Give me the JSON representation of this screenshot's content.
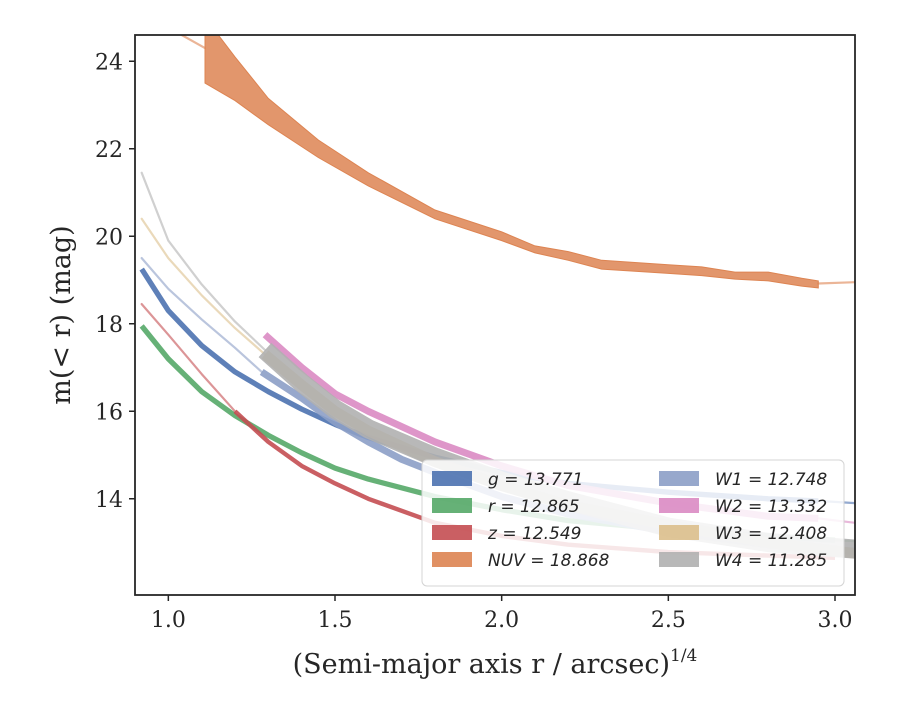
{
  "chart_data": {
    "type": "line",
    "xlabel": "(Semi-major axis r / arcsec)",
    "xlabel_exponent": "1/4",
    "ylabel": "m(< r) (mag)",
    "xlim": [
      0.9,
      3.06
    ],
    "ylim": [
      24.6,
      11.8
    ],
    "y_inverted": true,
    "grid": false,
    "legend_position": "lower-right",
    "legend_columns": 2,
    "x_ticks": [
      1.0,
      1.5,
      2.0,
      2.5,
      3.0
    ],
    "x_tick_labels": [
      "1.0",
      "1.5",
      "2.0",
      "2.5",
      "3.0"
    ],
    "y_ticks": [
      14,
      16,
      18,
      20,
      22,
      24
    ],
    "y_tick_labels": [
      "14",
      "16",
      "18",
      "20",
      "22",
      "24"
    ],
    "series": [
      {
        "name": "g",
        "legend": "g = 13.771",
        "color": "#4c72b0",
        "band_width": 0.06,
        "x": [
          0.92,
          1.0,
          1.1,
          1.2,
          1.3,
          1.4,
          1.5,
          1.6,
          1.8,
          2.0,
          2.2,
          2.5,
          2.8,
          2.95
        ],
        "y": [
          19.25,
          18.3,
          17.5,
          16.9,
          16.45,
          16.05,
          15.7,
          15.4,
          14.95,
          14.6,
          14.35,
          14.15,
          14.0,
          13.95
        ],
        "ext_x": [
          2.95,
          3.06
        ],
        "ext_y": [
          13.95,
          13.9
        ]
      },
      {
        "name": "r",
        "legend": "r = 12.865",
        "color": "#55a868",
        "band_width": 0.06,
        "x": [
          0.92,
          1.0,
          1.1,
          1.2,
          1.3,
          1.4,
          1.5,
          1.6,
          1.8,
          2.0,
          2.2,
          2.5,
          2.8,
          3.0
        ],
        "y": [
          17.95,
          17.2,
          16.45,
          15.9,
          15.45,
          15.05,
          14.7,
          14.45,
          14.05,
          13.75,
          13.5,
          13.3,
          13.15,
          13.05
        ],
        "ext_x": [
          3.0,
          3.06
        ],
        "ext_y": [
          13.05,
          13.03
        ]
      },
      {
        "name": "z",
        "legend": "z = 12.549",
        "color": "#c44e52",
        "band_width": 0.05,
        "x": [
          1.2,
          1.3,
          1.4,
          1.5,
          1.6,
          1.8,
          2.0,
          2.2,
          2.5,
          2.8,
          3.0
        ],
        "y": [
          16.0,
          15.3,
          14.75,
          14.35,
          14.0,
          13.45,
          13.15,
          12.95,
          12.78,
          12.7,
          12.65
        ],
        "ext_x": [
          0.92,
          1.0,
          1.1,
          1.2
        ],
        "ext_y": [
          18.45,
          17.75,
          16.85,
          16.0
        ]
      },
      {
        "name": "NUV",
        "legend": "NUV = 18.868",
        "color": "#dd8452",
        "band_width": 0.45,
        "x": [
          1.11,
          1.2,
          1.3,
          1.45,
          1.6,
          1.8,
          2.0,
          2.1,
          2.2,
          2.3,
          2.4,
          2.5,
          2.6,
          2.7,
          2.8,
          2.9,
          2.95
        ],
        "y": [
          24.3,
          23.6,
          22.85,
          22.0,
          21.3,
          20.5,
          20.0,
          19.7,
          19.55,
          19.35,
          19.3,
          19.25,
          19.2,
          19.1,
          19.08,
          18.95,
          18.9
        ],
        "band_lower": [
          23.5,
          23.1,
          22.55,
          21.8,
          21.15,
          20.4,
          19.9,
          19.62,
          19.45,
          19.25,
          19.2,
          19.15,
          19.1,
          19.02,
          18.98,
          18.86,
          18.82
        ],
        "band_upper": [
          25.0,
          24.1,
          23.15,
          22.2,
          21.45,
          20.6,
          20.1,
          19.78,
          19.65,
          19.45,
          19.4,
          19.35,
          19.3,
          19.18,
          19.18,
          19.04,
          18.98
        ],
        "ext_x": [
          1.04,
          1.11
        ],
        "ext_y": [
          24.6,
          24.3
        ],
        "ext2_x": [
          2.95,
          3.06
        ],
        "ext2_y": [
          18.92,
          18.95
        ]
      },
      {
        "name": "W1",
        "legend": "W1 = 12.748",
        "color": "#8c9ec7",
        "band_width": 0.08,
        "x": [
          1.28,
          1.4,
          1.5,
          1.6,
          1.7,
          1.8,
          2.0,
          2.2,
          2.5,
          2.8,
          3.06
        ],
        "y": [
          16.9,
          16.3,
          15.75,
          15.3,
          14.9,
          14.6,
          14.05,
          13.65,
          13.25,
          12.95,
          12.8
        ],
        "ext_x": [
          0.92,
          1.0,
          1.1,
          1.2,
          1.28
        ],
        "ext_y": [
          19.5,
          18.8,
          18.1,
          17.45,
          16.9
        ]
      },
      {
        "name": "W2",
        "legend": "W2 = 13.332",
        "color": "#da8bc3",
        "band_width": 0.08,
        "x": [
          1.29,
          1.4,
          1.5,
          1.6,
          1.8,
          2.0,
          2.2,
          2.5,
          2.8,
          2.95
        ],
        "y": [
          17.75,
          17.0,
          16.4,
          16.0,
          15.3,
          14.75,
          14.3,
          13.9,
          13.6,
          13.55
        ],
        "ext_x": [
          2.95,
          3.06
        ],
        "ext_y": [
          13.55,
          13.45
        ]
      },
      {
        "name": "W3",
        "legend": "W3 = 12.408",
        "color": "#dcbf8c",
        "band_width": 0.12,
        "x": [
          1.29,
          1.4,
          1.5,
          1.6,
          1.8,
          2.0,
          2.2,
          2.5,
          2.8,
          3.06
        ],
        "y": [
          17.3,
          16.6,
          16.0,
          15.55,
          14.85,
          14.3,
          13.85,
          13.4,
          13.0,
          12.75
        ],
        "ext_x": [
          0.92,
          1.0,
          1.1,
          1.2,
          1.29
        ],
        "ext_y": [
          20.4,
          19.5,
          18.65,
          17.9,
          17.3
        ]
      },
      {
        "name": "W4",
        "legend": "W4 = 11.285",
        "color": "#b0b0b0",
        "band_width": 0.22,
        "x": [
          1.29,
          1.4,
          1.5,
          1.6,
          1.8,
          2.0,
          2.2,
          2.5,
          2.8,
          3.06
        ],
        "y": [
          17.4,
          16.65,
          16.05,
          15.6,
          14.95,
          14.4,
          13.95,
          13.35,
          13.0,
          12.85
        ],
        "ext_x": [
          0.92,
          1.0,
          1.1,
          1.2,
          1.29
        ],
        "ext_y": [
          21.45,
          19.9,
          18.9,
          18.05,
          17.4
        ]
      }
    ]
  }
}
